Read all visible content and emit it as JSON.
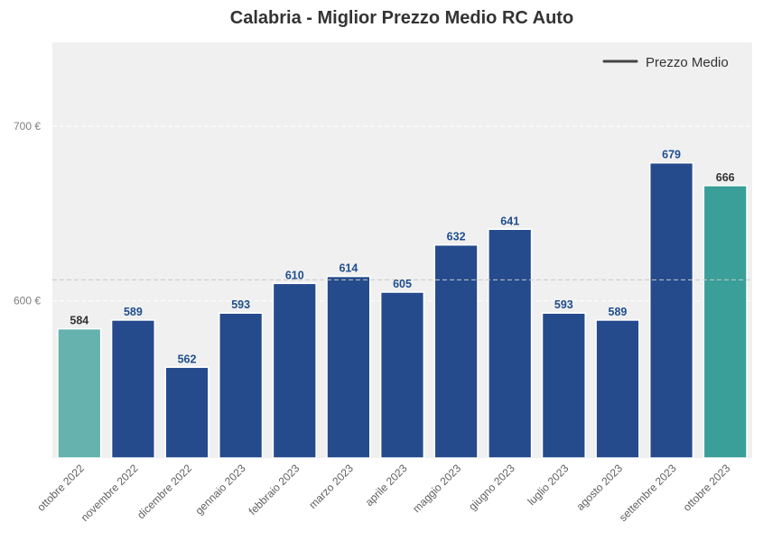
{
  "chart_data": {
    "type": "bar",
    "title": "Calabria - Miglior Prezzo Medio RC Auto",
    "xlabel": "",
    "ylabel": "",
    "categories": [
      "ottobre 2022",
      "novembre 2022",
      "dicembre 2022",
      "gennaio 2023",
      "febbraio 2023",
      "marzo 2023",
      "aprile 2023",
      "maggio 2023",
      "giugno 2023",
      "luglio 2023",
      "agosto 2023",
      "settembre 2023",
      "ottobre 2023"
    ],
    "values": [
      584,
      589,
      562,
      593,
      610,
      614,
      605,
      632,
      641,
      593,
      589,
      679,
      666
    ],
    "value_labels": [
      "584",
      "589",
      "562",
      "593",
      "610",
      "614",
      "605",
      "632",
      "641",
      "593",
      "589",
      "679",
      "666"
    ],
    "bar_colors": [
      "#66b2ae",
      "#254b8c",
      "#254b8c",
      "#254b8c",
      "#254b8c",
      "#254b8c",
      "#254b8c",
      "#254b8c",
      "#254b8c",
      "#254b8c",
      "#254b8c",
      "#254b8c",
      "#3a9e99"
    ],
    "label_colors": [
      "#333333",
      "#1f4e8c",
      "#1f4e8c",
      "#1f4e8c",
      "#1f4e8c",
      "#1f4e8c",
      "#1f4e8c",
      "#1f4e8c",
      "#1f4e8c",
      "#1f4e8c",
      "#1f4e8c",
      "#1f4e8c",
      "#333333"
    ],
    "ylim": [
      510,
      748
    ],
    "yticks": [
      600,
      700
    ],
    "ytick_labels": [
      "600 €",
      "700 €"
    ],
    "reference_line": 612,
    "grid": true,
    "legend": {
      "position": "top-right",
      "entries": [
        "Prezzo Medio"
      ],
      "line_color": "#444444"
    },
    "colors": {
      "background": "#f0f0f0",
      "grid": "#ffffff"
    }
  }
}
